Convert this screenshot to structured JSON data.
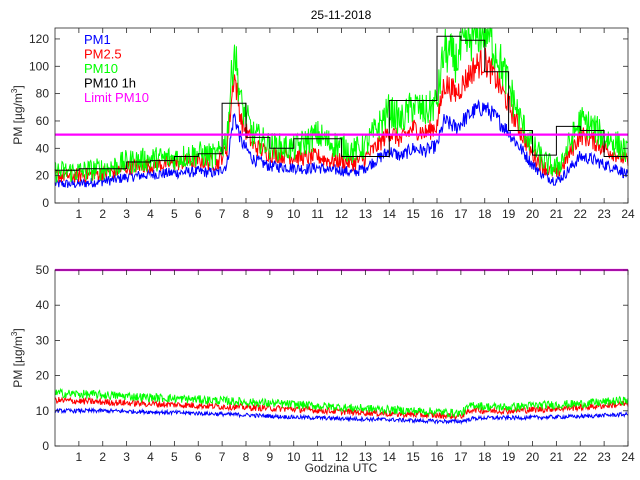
{
  "chart_data": [
    {
      "type": "line",
      "panel": "top",
      "title": "25-11-2018",
      "ylabel": "PM [µg/m3]",
      "xlabel": "",
      "xlim": [
        0,
        24
      ],
      "ylim": [
        0,
        128
      ],
      "xticks": [
        1,
        2,
        3,
        4,
        5,
        6,
        7,
        8,
        9,
        10,
        11,
        12,
        13,
        14,
        15,
        16,
        17,
        18,
        19,
        20,
        21,
        22,
        23,
        24
      ],
      "yticks": [
        0,
        20,
        40,
        60,
        80,
        100,
        120
      ],
      "legend": [
        "PM1",
        "PM2.5",
        "PM10",
        "PM10 1h",
        "Limit PM10"
      ],
      "legend_position": "top-left",
      "series": [
        {
          "name": "PM1",
          "color": "#0000ff",
          "noise": 3,
          "x": [
            0,
            1,
            2,
            2.5,
            3,
            4,
            5,
            6,
            6.8,
            7.2,
            7.5,
            7.8,
            8.3,
            9,
            10,
            10.5,
            11,
            11.5,
            12,
            12.5,
            13,
            13.5,
            14,
            14.5,
            15,
            15.5,
            16,
            16.3,
            16.8,
            17.2,
            17.6,
            18,
            18.5,
            19,
            19.5,
            20,
            20.5,
            21,
            21.3,
            22,
            22.5,
            23,
            23.5,
            24
          ],
          "values": [
            14,
            14,
            16,
            17,
            19,
            21,
            22,
            23,
            22,
            28,
            65,
            45,
            32,
            27,
            26,
            25,
            26,
            24,
            24,
            22,
            26,
            32,
            38,
            34,
            40,
            38,
            42,
            60,
            55,
            62,
            68,
            70,
            62,
            52,
            40,
            28,
            20,
            16,
            20,
            34,
            32,
            28,
            26,
            20
          ]
        },
        {
          "name": "PM2.5",
          "color": "#ff0000",
          "noise": 4,
          "x": [
            0,
            1,
            2,
            2.5,
            3,
            4,
            5,
            6,
            6.8,
            7.2,
            7.5,
            7.8,
            8.3,
            9,
            10,
            10.5,
            11,
            11.5,
            12,
            12.5,
            13,
            13.5,
            14,
            14.5,
            15,
            15.5,
            16,
            16.3,
            16.8,
            17.2,
            17.6,
            18,
            18.5,
            19,
            19.5,
            20,
            20.5,
            21,
            21.3,
            22,
            22.5,
            23,
            23.5,
            24
          ],
          "values": [
            20,
            20,
            22,
            23,
            26,
            28,
            29,
            31,
            29,
            40,
            95,
            60,
            42,
            36,
            34,
            33,
            34,
            31,
            31,
            29,
            33,
            42,
            52,
            46,
            55,
            51,
            57,
            88,
            80,
            90,
            100,
            104,
            90,
            72,
            52,
            36,
            26,
            21,
            28,
            50,
            46,
            40,
            36,
            30
          ]
        },
        {
          "name": "PM10",
          "color": "#00ff00",
          "noise": 6,
          "x": [
            0,
            1,
            2,
            2.5,
            3,
            4,
            5,
            6,
            6.8,
            7.2,
            7.5,
            7.8,
            8.3,
            9,
            10,
            10.5,
            11,
            11.5,
            12,
            12.5,
            13,
            13.5,
            14,
            14.5,
            15,
            15.5,
            16,
            16.3,
            16.8,
            17.2,
            17.6,
            18,
            18.5,
            19,
            19.5,
            20,
            20.5,
            21,
            21.3,
            22,
            22.5,
            23,
            23.5,
            24
          ],
          "values": [
            23,
            23,
            25,
            27,
            30,
            32,
            33,
            36,
            34,
            48,
            115,
            72,
            50,
            42,
            40,
            45,
            50,
            44,
            42,
            38,
            42,
            55,
            68,
            60,
            72,
            66,
            74,
            112,
            104,
            116,
            124,
            128,
            110,
            86,
            60,
            42,
            30,
            25,
            34,
            60,
            56,
            48,
            44,
            36
          ]
        },
        {
          "name": "PM10 1h",
          "color": "#000000",
          "step": true,
          "x": [
            0,
            1,
            2,
            3,
            4,
            5,
            6,
            7,
            8,
            9,
            10,
            11,
            12,
            13,
            14,
            15,
            16,
            17,
            18,
            19,
            20,
            21,
            22,
            23
          ],
          "values": [
            24,
            25,
            25,
            30,
            31,
            34,
            36,
            73,
            48,
            40,
            47,
            47,
            34,
            34,
            75,
            75,
            122,
            119,
            96,
            53,
            35,
            56,
            53,
            34
          ]
        },
        {
          "name": "Limit PM10",
          "color": "#ff00ff",
          "constant": 50
        }
      ]
    },
    {
      "type": "line",
      "panel": "bottom",
      "title": "",
      "ylabel": "PM [µg/m3]",
      "xlabel": "Godzina UTC",
      "xlim": [
        0,
        24
      ],
      "ylim": [
        0,
        50
      ],
      "xticks": [
        1,
        2,
        3,
        4,
        5,
        6,
        7,
        8,
        9,
        10,
        11,
        12,
        13,
        14,
        15,
        16,
        17,
        18,
        19,
        20,
        21,
        22,
        23,
        24
      ],
      "yticks": [
        0,
        10,
        20,
        30,
        40,
        50
      ],
      "series": [
        {
          "name": "PM1",
          "color": "#0000ff",
          "noise": 0.5,
          "x": [
            0,
            2,
            4,
            6,
            8,
            10,
            12,
            14,
            16,
            17,
            17.5,
            18,
            19,
            20,
            22,
            24
          ],
          "values": [
            10,
            10,
            9.7,
            9.3,
            8.8,
            8.2,
            7.8,
            7.5,
            7.0,
            7.0,
            7.8,
            8.0,
            8.0,
            8.1,
            8.4,
            9
          ]
        },
        {
          "name": "PM2.5",
          "color": "#ff0000",
          "noise": 0.8,
          "x": [
            0,
            2,
            4,
            6,
            8,
            10,
            12,
            14,
            16,
            17,
            17.5,
            18,
            19,
            20,
            22,
            24
          ],
          "values": [
            13,
            12.5,
            12,
            11.5,
            11,
            10.5,
            9.8,
            9.2,
            8.7,
            8.5,
            10.5,
            10,
            10,
            10.3,
            11,
            12
          ]
        },
        {
          "name": "PM10",
          "color": "#00ff00",
          "noise": 1.0,
          "x": [
            0,
            2,
            4,
            6,
            8,
            10,
            12,
            14,
            16,
            17,
            17.5,
            18,
            19,
            20,
            22,
            24
          ],
          "values": [
            15,
            14.5,
            13.8,
            13.2,
            12.5,
            11.8,
            11,
            10.3,
            9.7,
            9.3,
            11.8,
            11.2,
            11,
            11.5,
            12,
            13
          ]
        },
        {
          "name": "Limit PM10",
          "color": "#ff00ff",
          "constant": 50
        }
      ]
    }
  ]
}
